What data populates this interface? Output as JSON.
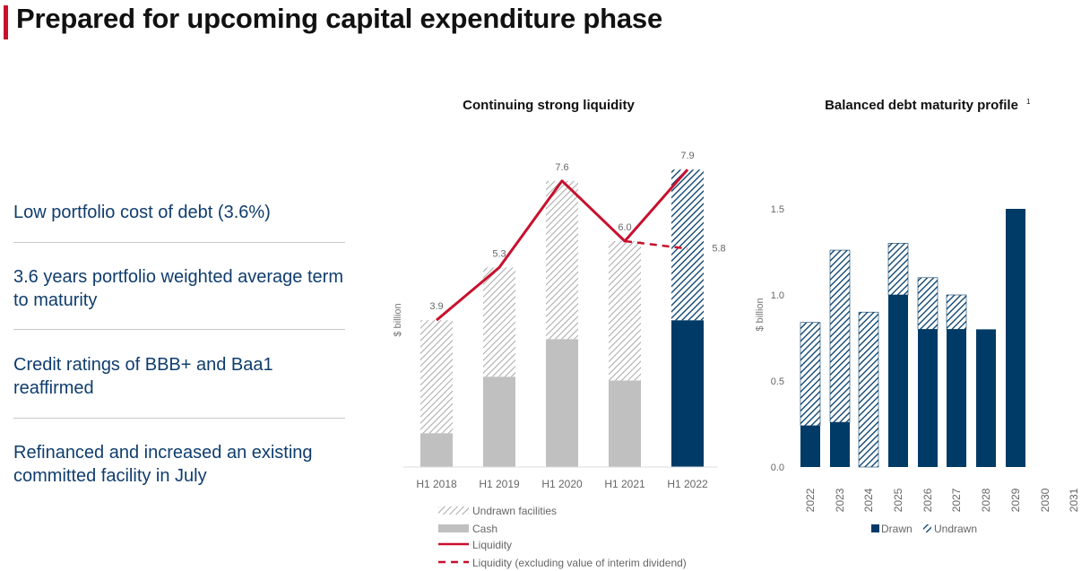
{
  "header": {
    "title": "Prepared for upcoming capital expenditure phase"
  },
  "bullets": [
    "Low portfolio cost of debt (3.6%)",
    "3.6 years portfolio weighted average term to maturity",
    "Credit ratings of BBB+ and Baa1 reaffirmed",
    "Refinanced and increased an existing committed facility in July"
  ],
  "colors": {
    "accent": "#c8102e",
    "navy": "#003a66",
    "cash_grey": "#c0c0c0",
    "text_blue": "#0f3d6e"
  },
  "chart_data": [
    {
      "type": "bar",
      "title": "Continuing strong liquidity",
      "ylabel": "$ billion",
      "categories": [
        "H1 2018",
        "H1 2019",
        "H1 2020",
        "H1 2021",
        "H1 2022"
      ],
      "series": [
        {
          "name": "Cash",
          "values": [
            0.9,
            2.4,
            3.4,
            2.3,
            3.9
          ]
        },
        {
          "name": "Undrawn facilities",
          "values": [
            3.0,
            2.9,
            4.2,
            3.7,
            4.0
          ]
        },
        {
          "name": "Liquidity",
          "values": [
            3.9,
            5.3,
            7.6,
            6.0,
            7.9
          ]
        },
        {
          "name": "Liquidity (excluding value of interim dividend)",
          "x": [
            "H1 2021",
            "H1 2022"
          ],
          "values": [
            6.0,
            5.8
          ]
        }
      ],
      "data_labels": [
        "3.9",
        "5.3",
        "7.6",
        "6.0",
        "7.9",
        "5.8"
      ],
      "legend": [
        "Undrawn facilities",
        "Cash",
        "Liquidity",
        "Liquidity (excluding value of interim dividend)"
      ],
      "legend_position": "bottom"
    },
    {
      "type": "bar",
      "title": "Balanced debt maturity profile",
      "title_superscript": "1",
      "ylabel": "$ billion",
      "ylim": [
        0,
        1.5
      ],
      "yticks": [
        "0.0",
        "0.5",
        "1.0",
        "1.5"
      ],
      "categories": [
        "2022",
        "2023",
        "2024",
        "2025",
        "2026",
        "2027",
        "2028",
        "2029",
        "2030",
        "2031"
      ],
      "series": [
        {
          "name": "Drawn",
          "values": [
            0.24,
            0.26,
            0,
            1.0,
            0.8,
            0.8,
            0.8,
            1.5,
            0,
            0
          ]
        },
        {
          "name": "Undrawn",
          "values": [
            0.6,
            1.0,
            0.9,
            0.3,
            0.3,
            0.2,
            0,
            0,
            0,
            0
          ]
        }
      ],
      "legend": [
        "Drawn",
        "Undrawn"
      ],
      "legend_position": "bottom"
    }
  ]
}
